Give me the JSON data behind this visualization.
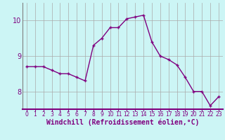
{
  "x": [
    0,
    1,
    2,
    3,
    4,
    5,
    6,
    7,
    8,
    9,
    10,
    11,
    12,
    13,
    14,
    15,
    16,
    17,
    18,
    19,
    20,
    21,
    22,
    23
  ],
  "y": [
    8.7,
    8.7,
    8.7,
    8.6,
    8.5,
    8.5,
    8.4,
    8.3,
    9.3,
    9.5,
    9.8,
    9.8,
    10.05,
    10.1,
    10.15,
    9.4,
    9.0,
    8.9,
    8.75,
    8.4,
    8.0,
    8.0,
    7.6,
    7.85
  ],
  "line_color": "#800080",
  "marker": "+",
  "marker_size": 3.5,
  "marker_linewidth": 1.0,
  "background_color": "#ccf5f5",
  "grid_color": "#aaaaaa",
  "xlabel": "Windchill (Refroidissement éolien,°C)",
  "xlabel_color": "#800080",
  "ylim": [
    7.5,
    10.5
  ],
  "xlim": [
    -0.5,
    23.5
  ],
  "yticks": [
    8,
    9,
    10
  ],
  "xticks": [
    0,
    1,
    2,
    3,
    4,
    5,
    6,
    7,
    8,
    9,
    10,
    11,
    12,
    13,
    14,
    15,
    16,
    17,
    18,
    19,
    20,
    21,
    22,
    23
  ],
  "tick_color": "#800080",
  "xtick_fontsize": 5.5,
  "ytick_fontsize": 7.0,
  "xlabel_fontsize": 7.0,
  "linewidth": 1.0,
  "spine_color": "#808080",
  "xaxis_line_color": "#800080"
}
